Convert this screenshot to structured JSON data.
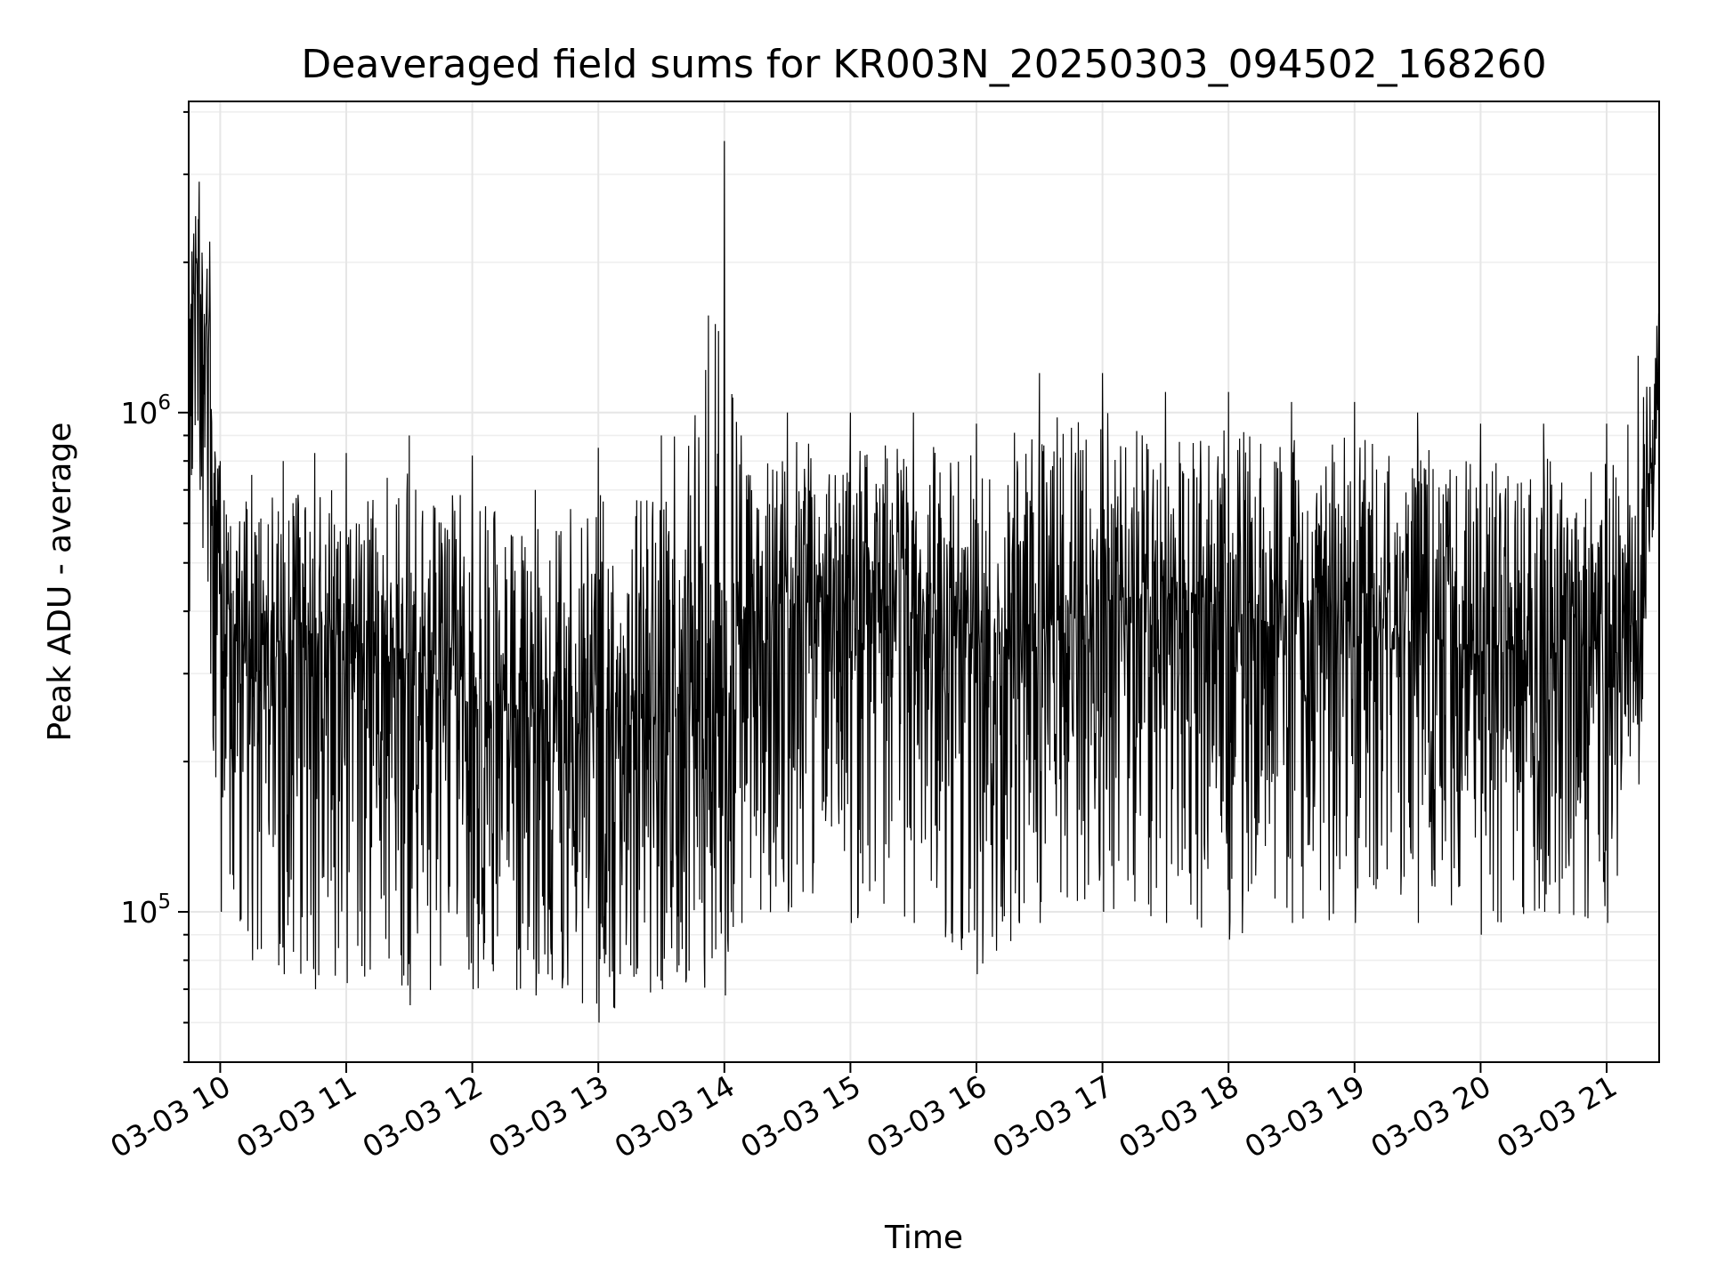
{
  "chart_data": {
    "type": "line",
    "title": "Deaveraged field sums for KR003N_20250303_094502_168260",
    "xlabel": "Time",
    "ylabel": "Peak ADU - average",
    "xscale": "time",
    "yscale": "log",
    "xlim": [
      "2025-03-03 09:45",
      "2025-03-03 21:25"
    ],
    "ylim": [
      50000,
      4200000
    ],
    "grid": true,
    "legend": "none",
    "x_ticks": [
      "2025-03-03 10:00",
      "2025-03-03 11:00",
      "2025-03-03 12:00",
      "2025-03-03 13:00",
      "2025-03-03 14:00",
      "2025-03-03 15:00",
      "2025-03-03 16:00",
      "2025-03-03 17:00",
      "2025-03-03 18:00",
      "2025-03-03 19:00",
      "2025-03-03 20:00",
      "2025-03-03 21:00"
    ],
    "x_tick_labels": [
      "03-03 10",
      "03-03 11",
      "03-03 12",
      "03-03 13",
      "03-03 14",
      "03-03 15",
      "03-03 16",
      "03-03 17",
      "03-03 18",
      "03-03 19",
      "03-03 20",
      "03-03 21"
    ],
    "y_ticks": [
      100000,
      1000000
    ],
    "y_tick_labels": [
      {
        "base": "10",
        "exp": "5"
      },
      {
        "base": "10",
        "exp": "6"
      }
    ],
    "line_color": "#000000",
    "series": [
      {
        "x": [
          "2025-03-03 09:45",
          "2025-03-03 09:50",
          "2025-03-03 09:55",
          "2025-03-03 10:00",
          "2025-03-03 10:15",
          "2025-03-03 10:30",
          "2025-03-03 10:45",
          "2025-03-03 11:00",
          "2025-03-03 11:30",
          "2025-03-03 12:00",
          "2025-03-03 12:30",
          "2025-03-03 13:00",
          "2025-03-03 13:30",
          "2025-03-03 14:00",
          "2025-03-03 14:08",
          "2025-03-03 14:30",
          "2025-03-03 15:00",
          "2025-03-03 15:30",
          "2025-03-03 16:00",
          "2025-03-03 16:30",
          "2025-03-03 17:00",
          "2025-03-03 17:30",
          "2025-03-03 18:00",
          "2025-03-03 18:30",
          "2025-03-03 19:00",
          "2025-03-03 19:30",
          "2025-03-03 20:00",
          "2025-03-03 20:30",
          "2025-03-03 21:00",
          "2025-03-03 21:15",
          "2025-03-03 21:25"
        ],
        "y": [
          1500000,
          1800000,
          1300000,
          450000,
          300000,
          330000,
          320000,
          340000,
          320000,
          260000,
          250000,
          240000,
          250000,
          240000,
          380000,
          420000,
          420000,
          400000,
          360000,
          370000,
          420000,
          430000,
          400000,
          370000,
          370000,
          360000,
          330000,
          330000,
          330000,
          380000,
          1200000
        ],
        "min_envelope": [
          400000,
          700000,
          300000,
          100000,
          80000,
          75000,
          70000,
          72000,
          65000,
          70000,
          68000,
          60000,
          70000,
          68000,
          95000,
          100000,
          95000,
          95000,
          75000,
          95000,
          100000,
          95000,
          88000,
          95000,
          95000,
          95000,
          90000,
          100000,
          95000,
          180000,
          900000
        ],
        "max_envelope": [
          2600000,
          2900000,
          2200000,
          800000,
          750000,
          800000,
          830000,
          830000,
          900000,
          820000,
          700000,
          850000,
          900000,
          3500000,
          900000,
          1000000,
          1000000,
          1000000,
          950000,
          1200000,
          1200000,
          1100000,
          1100000,
          1050000,
          1050000,
          1000000,
          950000,
          950000,
          950000,
          1300000,
          1700000
        ]
      }
    ]
  }
}
